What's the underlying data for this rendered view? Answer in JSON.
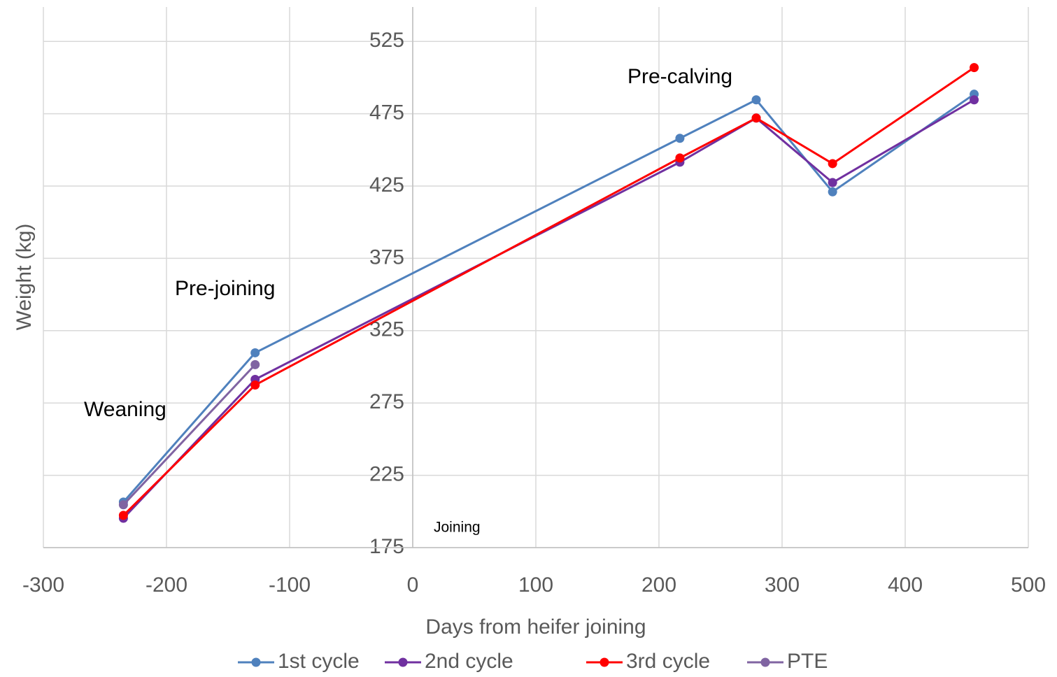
{
  "chart_data": {
    "type": "line",
    "x_label": "Days from heifer joining",
    "y_label": "Weight (kg)",
    "x": [
      -235,
      -128,
      217,
      279,
      341,
      456
    ],
    "series": [
      {
        "name": "1st cycle",
        "color": "#4f81bd",
        "values": [
          206.5,
          309.7,
          458,
          484.6,
          421,
          488.5
        ]
      },
      {
        "name": "2nd cycle",
        "color": "#7030a0",
        "values": [
          195.3,
          291.3,
          441.5,
          472,
          427.4,
          484.6
        ]
      },
      {
        "name": "3rd cycle",
        "color": "#ff0000",
        "values": [
          197.3,
          287.4,
          444.4,
          472,
          440.5,
          506.9
        ]
      },
      {
        "name": "PTE",
        "color": "#8064a2",
        "values": [
          204.6,
          301.5,
          null,
          null,
          null,
          null
        ]
      }
    ],
    "annotations": [
      "Weaning",
      "Pre-joining",
      "Pre-calving",
      "Joining"
    ],
    "xlim": [
      -300,
      500
    ],
    "xticks": [
      -300,
      -200,
      -100,
      0,
      100,
      200,
      300,
      400,
      500
    ],
    "ylim": [
      175,
      550
    ],
    "yticks": [
      175,
      225,
      275,
      325,
      375,
      425,
      475,
      525
    ],
    "grid": true,
    "legend": "bottom"
  }
}
